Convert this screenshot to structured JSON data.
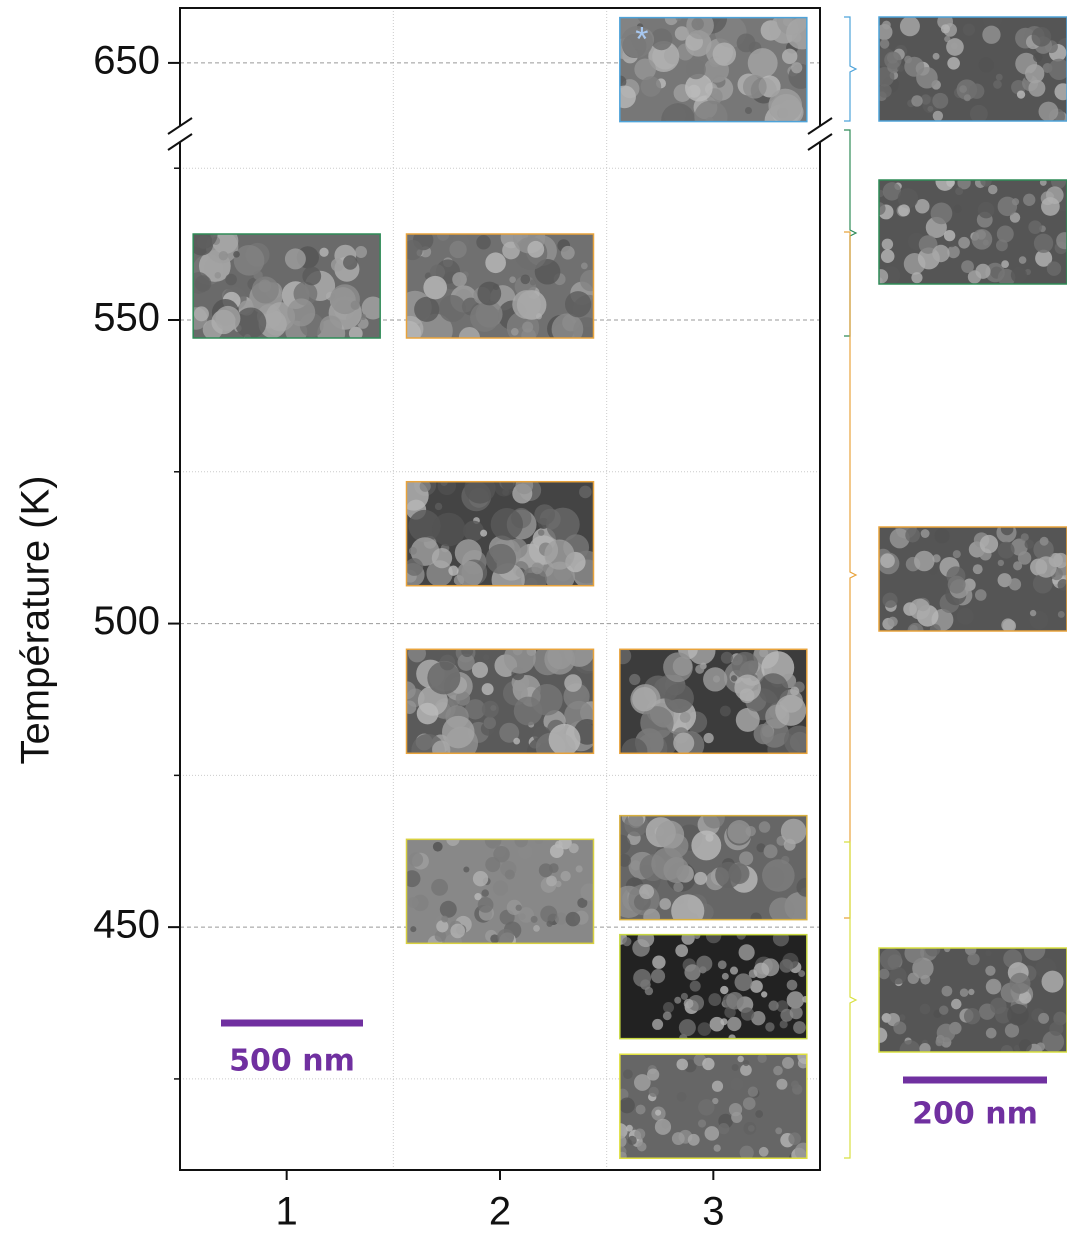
{
  "chart_data": {
    "type": "image-map",
    "ylabel": "Température (K)",
    "xlim": [
      0.5,
      3.5
    ],
    "xticks": [
      1,
      2,
      3
    ],
    "ylim": [
      410,
      578
    ],
    "yticks": [
      450,
      500,
      550
    ],
    "yminor": [
      425,
      475,
      525,
      575
    ],
    "ylim_upper": [
      639,
      659
    ],
    "yticks_upper": [
      650
    ],
    "tiles": [
      {
        "x": 3,
        "temperature": 648.9,
        "color": "#4ea3d9",
        "label": "*"
      },
      {
        "x": 1,
        "temperature": 555.6,
        "color": "#2e8b57"
      },
      {
        "x": 2,
        "temperature": 555.6,
        "color": "#e8a33c"
      },
      {
        "x": 2,
        "temperature": 514.8,
        "color": "#e8a33c"
      },
      {
        "x": 2,
        "temperature": 487.2,
        "color": "#e8a33c"
      },
      {
        "x": 3,
        "temperature": 487.2,
        "color": "#e8a33c"
      },
      {
        "x": 2,
        "temperature": 455.9,
        "color": "#d8d040"
      },
      {
        "x": 3,
        "temperature": 459.8,
        "color": "#d8b040"
      },
      {
        "x": 3,
        "temperature": 440.2,
        "color": "#c8d840"
      },
      {
        "x": 3,
        "temperature": 420.5,
        "color": "#e0e040"
      }
    ],
    "scale_bar_top": "500 nm",
    "scale_bar_side": "200 nm"
  }
}
